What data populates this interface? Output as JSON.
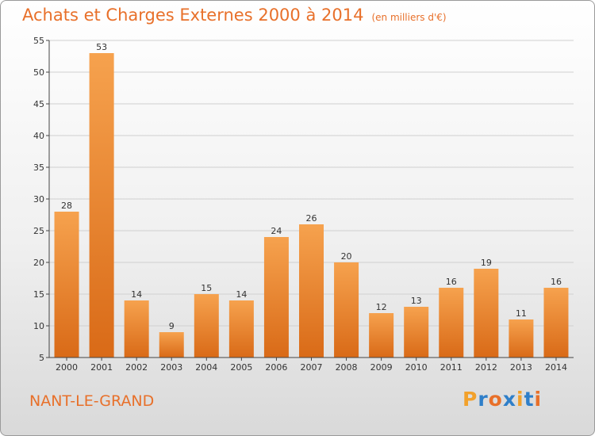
{
  "title": "Achats et Charges Externes 2000 à 2014",
  "units": "(en milliers d'€)",
  "commune": "NANT-LE-GRAND",
  "brand": [
    "P",
    "r",
    "o",
    "x",
    "i",
    "t",
    "i"
  ],
  "colors": {
    "accent": "#e8702a",
    "bar_top": "#f6a24e",
    "bar_bottom": "#d96a17",
    "grid": "#d0d0d0",
    "axis": "#444444"
  },
  "chart_data": {
    "type": "bar",
    "categories": [
      "2000",
      "2001",
      "2002",
      "2003",
      "2004",
      "2005",
      "2006",
      "2007",
      "2008",
      "2009",
      "2010",
      "2011",
      "2012",
      "2013",
      "2014"
    ],
    "values": [
      28,
      53,
      14,
      9,
      15,
      14,
      24,
      26,
      20,
      12,
      13,
      16,
      19,
      11,
      16
    ],
    "ylim": [
      5,
      55
    ],
    "yticks": [
      5,
      10,
      15,
      20,
      25,
      30,
      35,
      40,
      45,
      50,
      55
    ],
    "grid": true
  }
}
